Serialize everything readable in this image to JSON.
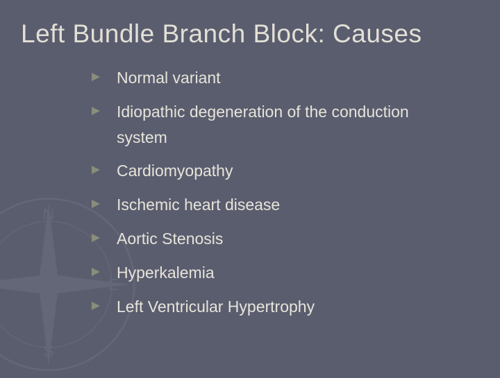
{
  "slide": {
    "title": "Left Bundle Branch Block: Causes",
    "bullets": [
      "Normal variant",
      "Idiopathic degeneration of the conduction system",
      "Cardiomyopathy",
      "Ischemic heart disease",
      "Aortic Stenosis",
      "Hyperkalemia",
      "Left Ventricular Hypertrophy"
    ]
  },
  "style": {
    "background_color": "#5a5d6e",
    "title_color": "#e2e0d6",
    "title_fontsize": 37,
    "body_color": "#e6e4da",
    "body_fontsize": 23,
    "bullet_icon_color": "#8a8d7a",
    "font_family": "Verdana",
    "watermark_opacity": 0.06
  }
}
